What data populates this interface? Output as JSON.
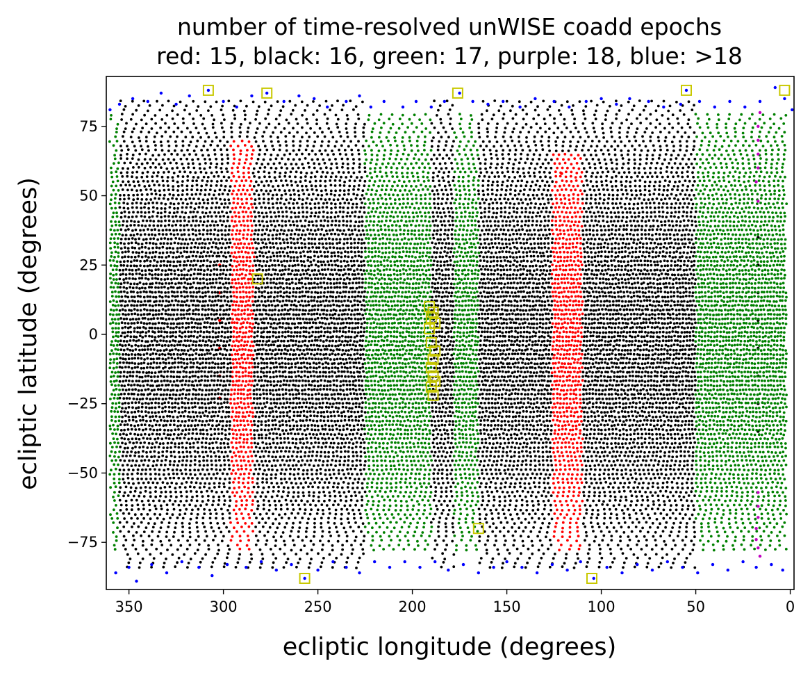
{
  "chart_data": {
    "type": "scatter",
    "title": "number of time-resolved unWISE coadd epochs",
    "subtitle": "red: 15, black: 16, green: 17, purple: 18, blue: >18",
    "xlabel": "ecliptic longitude (degrees)",
    "ylabel": "ecliptic latitude (degrees)",
    "xlim": [
      362,
      -2
    ],
    "ylim": [
      -92,
      93
    ],
    "x_reversed": true,
    "grid": false,
    "legend": "none (colors explained in subtitle)",
    "xticks": [
      350,
      300,
      250,
      200,
      150,
      100,
      50,
      0
    ],
    "yticks": [
      75,
      50,
      25,
      0,
      -25,
      -50,
      -75
    ],
    "xtick_labels": [
      "350",
      "300",
      "250",
      "200",
      "150",
      "100",
      "50",
      "0"
    ],
    "ytick_labels": [
      "75",
      "50",
      "25",
      "0",
      "−25",
      "−50",
      "−75"
    ],
    "series": [
      {
        "name": "red: 15",
        "color": "#ff0000",
        "regions": [
          {
            "lon": [
              284,
              296
            ],
            "lat": [
              -78,
              70
            ]
          },
          {
            "lon": [
              110,
              126
            ],
            "lat": [
              -78,
              65
            ]
          }
        ],
        "points": [
          [
            302,
            25
          ],
          [
            302,
            15
          ],
          [
            302,
            5
          ],
          [
            302,
            -5
          ],
          [
            302,
            -15
          ],
          [
            302,
            -23
          ],
          [
            121,
            58
          ]
        ]
      },
      {
        "name": "black: 16",
        "color": "#000000",
        "regions": [
          {
            "lon": [
              225,
              355
            ],
            "lat": [
              -84,
              84
            ]
          },
          {
            "lon": [
              178,
              190
            ],
            "lat": [
              -84,
              84
            ]
          },
          {
            "lon": [
              50,
              165
            ],
            "lat": [
              -84,
              84
            ]
          }
        ],
        "points": [
          [
            17,
            35
          ],
          [
            17,
            25
          ],
          [
            17,
            15
          ],
          [
            17,
            5
          ],
          [
            17,
            -5
          ],
          [
            17,
            -15
          ],
          [
            17,
            -25
          ],
          [
            17,
            -35
          ]
        ]
      },
      {
        "name": "green: 17",
        "color": "#008000",
        "regions": [
          {
            "lon": [
              345,
              360
            ],
            "lat": [
              -78,
              80
            ]
          },
          {
            "lon": [
              190,
              225
            ],
            "lat": [
              -78,
              80
            ]
          },
          {
            "lon": [
              165,
              178
            ],
            "lat": [
              -78,
              80
            ]
          },
          {
            "lon": [
              2,
              50
            ],
            "lat": [
              -78,
              80
            ]
          }
        ]
      },
      {
        "name": "purple: 18",
        "color": "#c000c0",
        "points": [
          [
            16,
            80
          ],
          [
            17,
            75
          ],
          [
            17,
            70
          ],
          [
            17,
            65
          ],
          [
            17,
            60
          ],
          [
            18,
            55
          ],
          [
            17,
            48
          ],
          [
            17,
            -57
          ],
          [
            17,
            -62
          ],
          [
            17,
            -66
          ],
          [
            18,
            -70
          ],
          [
            18,
            -74
          ],
          [
            17,
            -77
          ],
          [
            16,
            -80
          ]
        ]
      },
      {
        "name": "blue: >18",
        "color": "#0000ff",
        "points": [
          [
            360,
            81
          ],
          [
            355,
            83
          ],
          [
            348,
            85
          ],
          [
            340,
            84
          ],
          [
            333,
            87
          ],
          [
            325,
            83
          ],
          [
            318,
            86
          ],
          [
            308,
            88
          ],
          [
            300,
            84
          ],
          [
            293,
            82
          ],
          [
            285,
            86
          ],
          [
            277,
            87
          ],
          [
            268,
            84
          ],
          [
            260,
            86
          ],
          [
            252,
            85
          ],
          [
            245,
            82
          ],
          [
            235,
            84
          ],
          [
            228,
            86
          ],
          [
            222,
            82
          ],
          [
            215,
            84
          ],
          [
            205,
            82
          ],
          [
            198,
            84
          ],
          [
            190,
            82
          ],
          [
            183,
            84
          ],
          [
            175,
            87
          ],
          [
            168,
            84
          ],
          [
            160,
            83
          ],
          [
            152,
            84
          ],
          [
            143,
            82
          ],
          [
            135,
            85
          ],
          [
            125,
            84
          ],
          [
            117,
            82
          ],
          [
            108,
            84
          ],
          [
            100,
            85
          ],
          [
            92,
            83
          ],
          [
            85,
            85
          ],
          [
            75,
            84
          ],
          [
            67,
            82
          ],
          [
            58,
            83
          ],
          [
            55,
            88
          ],
          [
            48,
            84
          ],
          [
            40,
            82
          ],
          [
            32,
            84
          ],
          [
            24,
            82
          ],
          [
            16,
            84
          ],
          [
            8,
            89
          ],
          [
            3,
            85
          ],
          [
            -1,
            81
          ],
          [
            357,
            -86
          ],
          [
            350,
            -84
          ],
          [
            346,
            -89
          ],
          [
            338,
            -83
          ],
          [
            330,
            -86
          ],
          [
            322,
            -82
          ],
          [
            313,
            -84
          ],
          [
            306,
            -87
          ],
          [
            298,
            -83
          ],
          [
            288,
            -84
          ],
          [
            280,
            -82
          ],
          [
            272,
            -85
          ],
          [
            264,
            -83
          ],
          [
            257,
            -88
          ],
          [
            250,
            -85
          ],
          [
            242,
            -82
          ],
          [
            235,
            -84
          ],
          [
            228,
            -86
          ],
          [
            220,
            -82
          ],
          [
            212,
            -84
          ],
          [
            204,
            -82
          ],
          [
            196,
            -84
          ],
          [
            188,
            -82
          ],
          [
            181,
            -85
          ],
          [
            173,
            -83
          ],
          [
            165,
            -86
          ],
          [
            157,
            -84
          ],
          [
            150,
            -82
          ],
          [
            142,
            -84
          ],
          [
            134,
            -86
          ],
          [
            126,
            -83
          ],
          [
            118,
            -85
          ],
          [
            111,
            -82
          ],
          [
            104,
            -88
          ],
          [
            97,
            -84
          ],
          [
            89,
            -86
          ],
          [
            81,
            -83
          ],
          [
            73,
            -85
          ],
          [
            65,
            -82
          ],
          [
            57,
            -84
          ],
          [
            49,
            -86
          ],
          [
            41,
            -83
          ],
          [
            33,
            -85
          ],
          [
            25,
            -82
          ],
          [
            18,
            -84
          ],
          [
            10,
            -83
          ],
          [
            4,
            -85
          ]
        ]
      },
      {
        "name": "",
        "color": "#c8c800",
        "marker": "open-square",
        "points": [
          [
            308,
            88
          ],
          [
            277,
            87
          ],
          [
            176,
            87
          ],
          [
            55,
            88
          ],
          [
            3,
            88
          ],
          [
            282,
            20
          ],
          [
            191,
            10
          ],
          [
            189,
            8
          ],
          [
            190,
            6
          ],
          [
            188,
            4
          ],
          [
            191,
            2
          ],
          [
            190,
            -3
          ],
          [
            188,
            -6
          ],
          [
            189,
            -9
          ],
          [
            190,
            -12
          ],
          [
            189,
            -15
          ],
          [
            188,
            -17
          ],
          [
            190,
            -19
          ],
          [
            189,
            -22
          ],
          [
            165,
            -70
          ],
          [
            257,
            -88
          ],
          [
            105,
            -88
          ]
        ]
      }
    ]
  }
}
